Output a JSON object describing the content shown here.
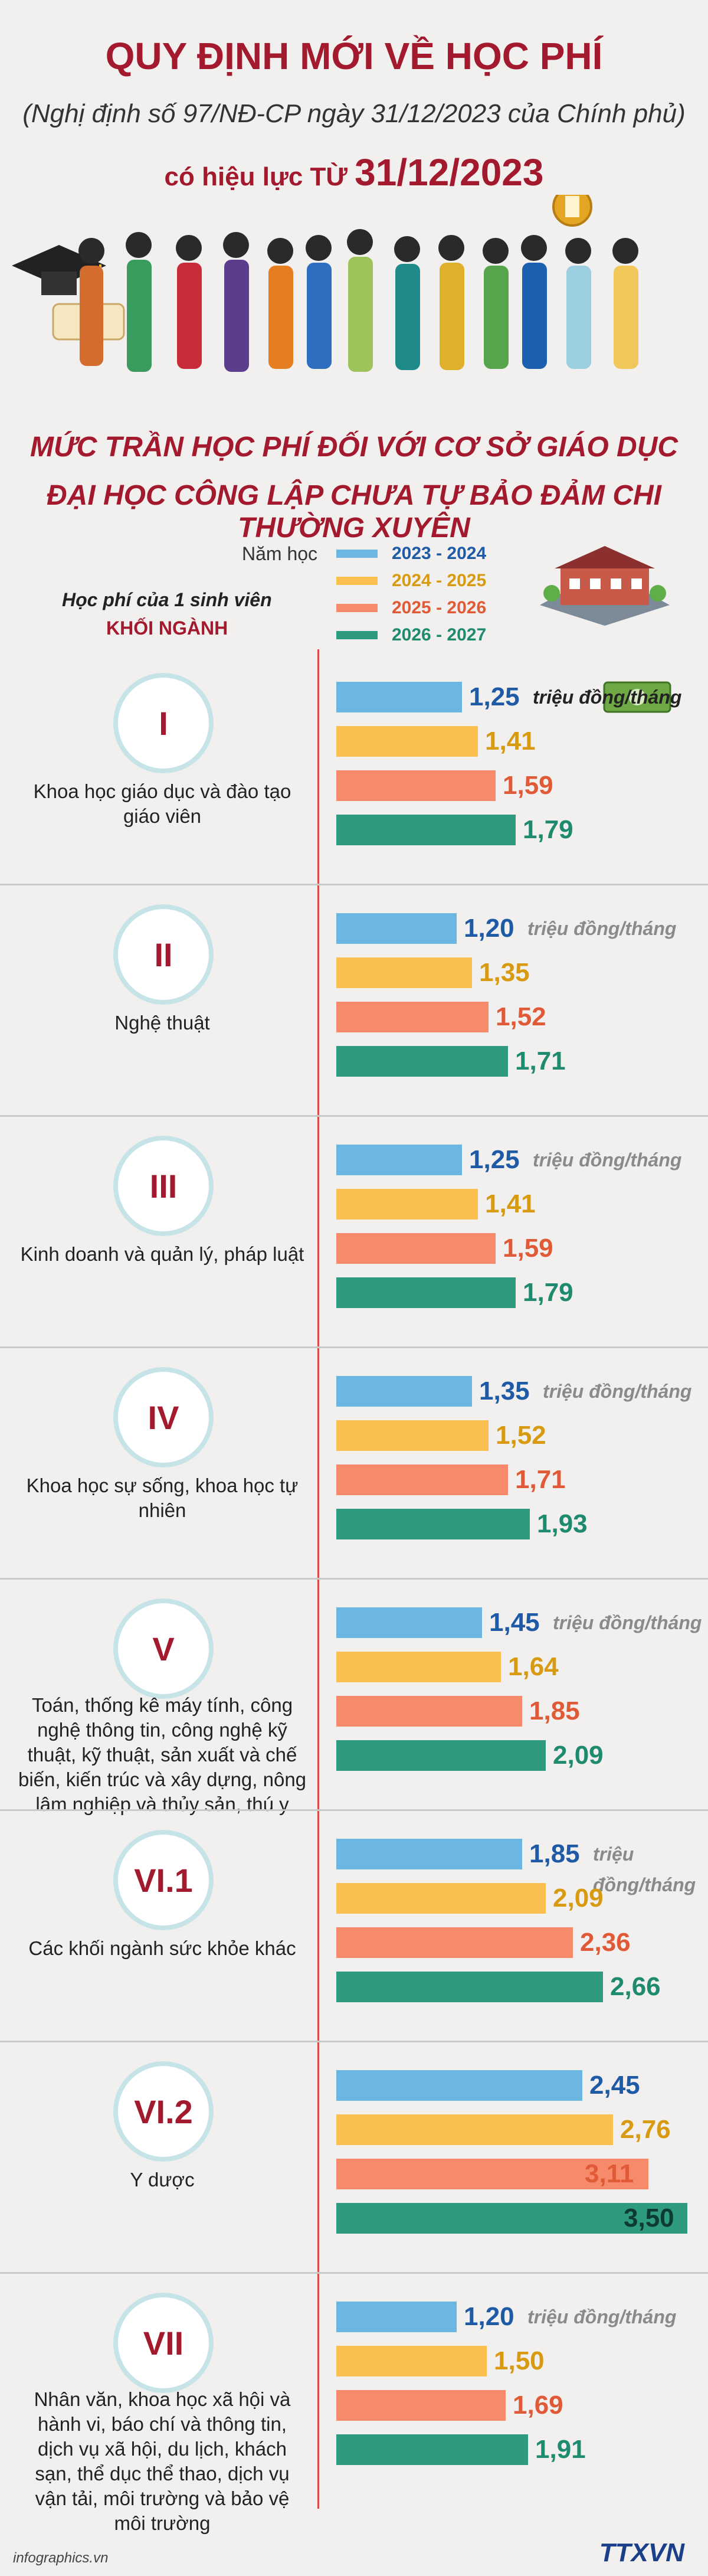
{
  "header": {
    "title": "QUY ĐỊNH MỚI VỀ HỌC PHÍ",
    "subtitle": "(Nghị định số 97/NĐ-CP ngày 31/12/2023 của Chính phủ)",
    "effective_prefix": "có hiệu lực TỪ",
    "effective_date": "31/12/2023",
    "heading_line1": "MỨC TRẦN HỌC PHÍ ĐỐI VỚI CƠ SỞ GIÁO DỤC",
    "heading_line2": "ĐẠI HỌC CÔNG LẬP CHƯA TỰ BẢO ĐẢM CHI THƯỜNG XUYÊN"
  },
  "legend": {
    "school_year_label": "Năm học",
    "per_student_label": "Học phí của 1 sinh viên",
    "group_label": "KHỐI NGÀNH"
  },
  "colors": {
    "s2023": "#6cb6e2",
    "s2024": "#fbbf4f",
    "s2025": "#f68a6a",
    "s2026": "#2e9a80",
    "accent": "#a3192e"
  },
  "chart_data": {
    "type": "bar",
    "orientation": "horizontal",
    "unit": "triệu đồng/tháng",
    "series": [
      {
        "name": "2023 - 2024",
        "values": [
          1.25,
          1.2,
          1.25,
          1.35,
          1.45,
          1.85,
          2.45,
          1.2
        ]
      },
      {
        "name": "2024 - 2025",
        "values": [
          1.41,
          1.35,
          1.41,
          1.52,
          1.64,
          2.09,
          2.76,
          1.5
        ]
      },
      {
        "name": "2025 - 2026",
        "values": [
          1.59,
          1.52,
          1.59,
          1.71,
          1.85,
          2.36,
          3.11,
          1.69
        ]
      },
      {
        "name": "2026 - 2027",
        "values": [
          1.79,
          1.71,
          1.79,
          1.93,
          2.09,
          2.66,
          3.5,
          1.91
        ]
      }
    ],
    "value_labels": [
      [
        "1,25",
        "1,41",
        "1,59",
        "1,79"
      ],
      [
        "1,20",
        "1,35",
        "1,52",
        "1,71"
      ],
      [
        "1,25",
        "1,41",
        "1,59",
        "1,79"
      ],
      [
        "1,35",
        "1,52",
        "1,71",
        "1,93"
      ],
      [
        "1,45",
        "1,64",
        "1,85",
        "2,09"
      ],
      [
        "1,85",
        "2,09",
        "2,36",
        "2,66"
      ],
      [
        "2,45",
        "2,76",
        "3,11",
        "3,50"
      ],
      [
        "1,20",
        "1,50",
        "1,69",
        "1,91"
      ]
    ],
    "groups": [
      {
        "code": "I",
        "name": "Khoa học giáo dục và đào tạo giáo viên",
        "show_unit": true
      },
      {
        "code": "II",
        "name": "Nghệ thuật",
        "show_unit": true
      },
      {
        "code": "III",
        "name": "Kinh doanh và quản lý, pháp luật",
        "show_unit": true
      },
      {
        "code": "IV",
        "name": "Khoa học sự sống, khoa học tự nhiên",
        "show_unit": true
      },
      {
        "code": "V",
        "name": "Toán, thống kê máy tính, công nghệ thông tin, công nghệ kỹ thuật, kỹ thuật, sản xuất và chế biến, kiến trúc và xây dựng, nông lâm nghiệp và thủy sản, thú y",
        "show_unit": true
      },
      {
        "code": "VI.1",
        "name": "Các khối ngành sức khỏe khác",
        "show_unit": true
      },
      {
        "code": "VI.2",
        "name": "Y dược",
        "show_unit": false
      },
      {
        "code": "VII",
        "name": "Nhân văn, khoa học xã hội và hành vi, báo chí và thông tin, dịch vụ xã hội, du lịch, khách sạn, thể dục thể thao, dịch vụ vận tải, môi trường và bảo vệ môi trường",
        "show_unit": true
      }
    ]
  },
  "footer": {
    "source": "infographics.vn",
    "logo": "TTXVN"
  }
}
